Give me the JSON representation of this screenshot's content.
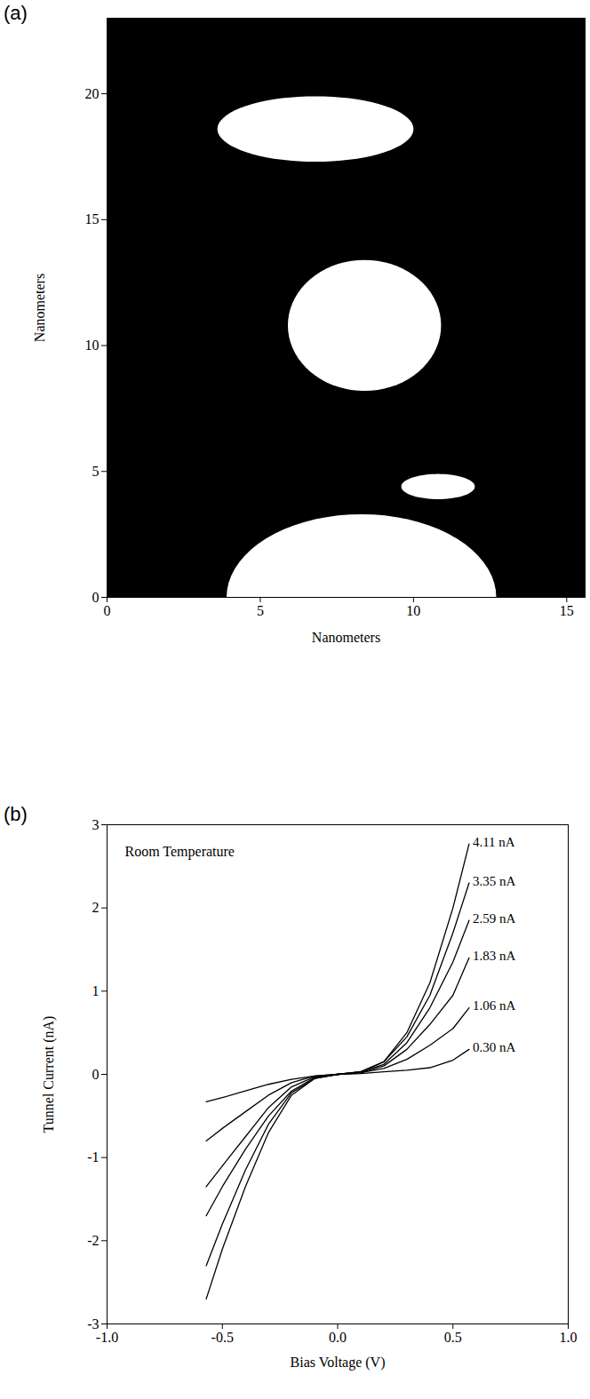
{
  "chart_data": [
    {
      "type": "image",
      "panel": "(a)",
      "xlabel": "Nanometers",
      "ylabel": "Nanometers",
      "xlim": [
        0,
        15.6
      ],
      "xticks": [
        0,
        5,
        10,
        15
      ],
      "ylim": [
        0,
        23
      ],
      "yticks": [
        0,
        5,
        10,
        15,
        20
      ],
      "color": "#000000",
      "bright_regions": [
        {
          "cx": 8.4,
          "cy": 10.8,
          "rx": 2.5,
          "ry": 2.6
        },
        {
          "cx": 8.3,
          "cy": 0,
          "rx": 4.4,
          "ry": 3.3
        },
        {
          "cx": 6.8,
          "cy": 18.6,
          "rx": 3.2,
          "ry": 1.3
        },
        {
          "cx": 10.8,
          "cy": 4.4,
          "rx": 1.2,
          "ry": 0.5
        }
      ]
    },
    {
      "type": "line",
      "panel": "(b)",
      "annotation": "Room Temperature",
      "xlabel": "Bias Voltage (V)",
      "ylabel": "Tunnel Current (nA)",
      "xlim": [
        -1,
        1
      ],
      "xticks": [
        {
          "value": -1,
          "label": "-1.0"
        },
        {
          "value": -0.5,
          "label": "-0.5"
        },
        {
          "value": 0,
          "label": "0.0"
        },
        {
          "value": 0.5,
          "label": "0.5"
        },
        {
          "value": 1,
          "label": "1.0"
        }
      ],
      "ylim": [
        -3,
        3
      ],
      "yticks": [
        -3,
        -2,
        -1,
        0,
        1,
        2,
        3
      ],
      "x": [
        -0.57,
        -0.5,
        -0.4,
        -0.3,
        -0.2,
        -0.1,
        0,
        0.1,
        0.2,
        0.3,
        0.4,
        0.5,
        0.57
      ],
      "series": [
        {
          "name": "4.11 nA",
          "color": "#000000",
          "values": [
            -2.7,
            -2.1,
            -1.35,
            -0.7,
            -0.25,
            -0.05,
            0,
            0.03,
            0.15,
            0.5,
            1.1,
            2.0,
            2.77
          ]
        },
        {
          "name": "3.35 nA",
          "color": "#000000",
          "values": [
            -2.3,
            -1.8,
            -1.15,
            -0.6,
            -0.22,
            -0.05,
            0,
            0.03,
            0.15,
            0.45,
            0.95,
            1.7,
            2.3
          ]
        },
        {
          "name": "2.59 nA",
          "color": "#000000",
          "values": [
            -1.7,
            -1.35,
            -0.9,
            -0.5,
            -0.2,
            -0.04,
            0,
            0.03,
            0.12,
            0.38,
            0.8,
            1.35,
            1.85
          ]
        },
        {
          "name": "1.83 nA",
          "color": "#000000",
          "values": [
            -1.35,
            -1.1,
            -0.75,
            -0.4,
            -0.15,
            -0.03,
            0,
            0.02,
            0.1,
            0.3,
            0.6,
            0.95,
            1.4
          ]
        },
        {
          "name": "1.06 nA",
          "color": "#000000",
          "values": [
            -0.8,
            -0.65,
            -0.45,
            -0.25,
            -0.1,
            -0.02,
            0,
            0.02,
            0.07,
            0.18,
            0.35,
            0.55,
            0.8
          ]
        },
        {
          "name": "0.30 nA",
          "color": "#000000",
          "values": [
            -0.33,
            -0.28,
            -0.2,
            -0.12,
            -0.06,
            -0.02,
            0,
            0.01,
            0.03,
            0.05,
            0.08,
            0.17,
            0.3
          ]
        }
      ]
    }
  ]
}
